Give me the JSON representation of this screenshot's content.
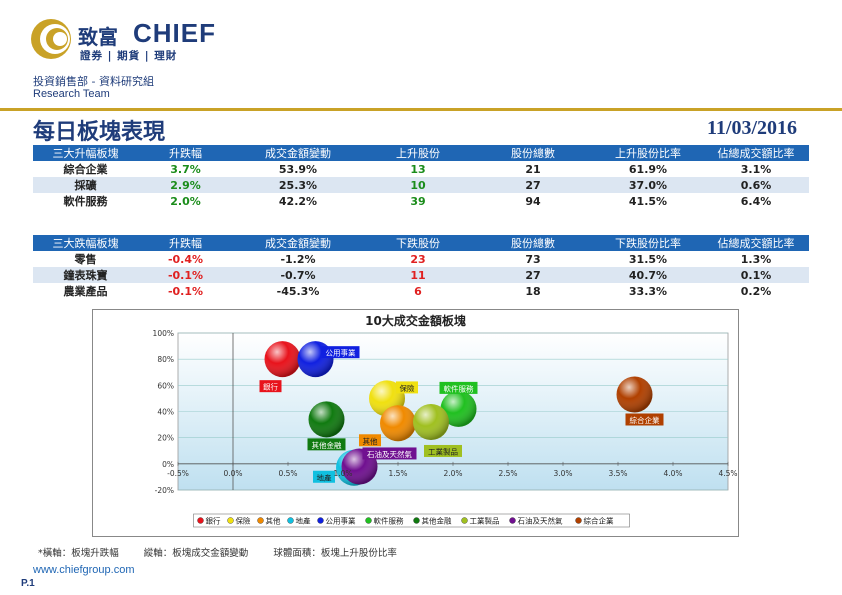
{
  "header": {
    "logo_cn": "致富",
    "logo_en": "CHIEF",
    "logo_sub": "證券 | 期貨 | 理財",
    "department": "投資銷售部 - 資料研究組",
    "team": "Research Team"
  },
  "title": "每日板塊表現",
  "date": "11/03/2016",
  "gainers": {
    "headers": [
      "三大升幅板塊",
      "升跌幅",
      "成交金額變動",
      "上升股份",
      "股份總數",
      "上升股份比率",
      "佔總成交額比率"
    ],
    "rows": [
      [
        "綜合企業",
        "3.7%",
        "53.9%",
        "13",
        "21",
        "61.9%",
        "3.1%"
      ],
      [
        "採礦",
        "2.9%",
        "25.3%",
        "10",
        "27",
        "37.0%",
        "0.6%"
      ],
      [
        "軟件服務",
        "2.0%",
        "42.2%",
        "39",
        "94",
        "41.5%",
        "6.4%"
      ]
    ]
  },
  "losers": {
    "headers": [
      "三大跌幅板塊",
      "升跌幅",
      "成交金額變動",
      "下跌股份",
      "股份總數",
      "下跌股份比率",
      "佔總成交額比率"
    ],
    "rows": [
      [
        "零售",
        "-0.4%",
        "-1.2%",
        "23",
        "73",
        "31.5%",
        "1.3%"
      ],
      [
        "鐘表珠寶",
        "-0.1%",
        "-0.7%",
        "11",
        "27",
        "40.7%",
        "0.1%"
      ],
      [
        "農業產品",
        "-0.1%",
        "-45.3%",
        "6",
        "18",
        "33.3%",
        "0.2%"
      ]
    ]
  },
  "chart_data": {
    "type": "scatter",
    "title": "10大成交金額板塊",
    "xlim": [
      -0.5,
      4.5
    ],
    "ylim": [
      -20,
      100
    ],
    "x_ticks": [
      "-0.5%",
      "0.0%",
      "0.5%",
      "1.0%",
      "1.5%",
      "2.0%",
      "2.5%",
      "3.0%",
      "3.5%",
      "4.0%",
      "4.5%"
    ],
    "y_ticks": [
      "-20%",
      "0%",
      "20%",
      "40%",
      "60%",
      "80%",
      "100%"
    ],
    "series": [
      {
        "name": "銀行",
        "x": 0.45,
        "y": 80,
        "color": "#e8131c",
        "label_bg": "#e8131c"
      },
      {
        "name": "保險",
        "x": 1.4,
        "y": 50,
        "color": "#f0e010",
        "label_bg": "#f0e010"
      },
      {
        "name": "其他",
        "x": 1.5,
        "y": 31,
        "color": "#f08a00",
        "label_bg": "#f08a00"
      },
      {
        "name": "地產",
        "x": 1.1,
        "y": -3,
        "color": "#10c0e0",
        "label_bg": "#10c0e0"
      },
      {
        "name": "公用事業",
        "x": 0.75,
        "y": 80,
        "color": "#1020e0",
        "label_bg": "#1020e0"
      },
      {
        "name": "軟件服務",
        "x": 2.05,
        "y": 42,
        "color": "#20c020",
        "label_bg": "#20c020"
      },
      {
        "name": "其他金融",
        "x": 0.85,
        "y": 34,
        "color": "#107a10",
        "label_bg": "#107a10"
      },
      {
        "name": "工業製品",
        "x": 1.8,
        "y": 32,
        "color": "#a0c020",
        "label_bg": "#a0c020"
      },
      {
        "name": "石油及天然氣",
        "x": 1.15,
        "y": -2,
        "color": "#701090",
        "label_bg": "#701090"
      },
      {
        "name": "綜合企業",
        "x": 3.65,
        "y": 53,
        "color": "#b04000",
        "label_bg": "#b04000"
      }
    ]
  },
  "footnote": {
    "x_axis": "*橫軸：板塊升跌幅",
    "y_axis": "縱軸：板塊成交金額變動",
    "bubble": "球體面積：板塊上升股份比率"
  },
  "website": "www.chiefgroup.com",
  "page_number": "P.1"
}
